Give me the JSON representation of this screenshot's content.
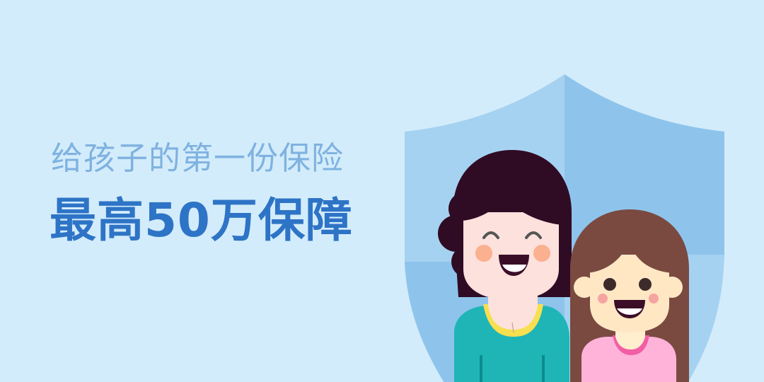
{
  "banner": {
    "subtitle": "给孩子的第一份保险",
    "title": "最高50万保障"
  },
  "colors": {
    "background": "#d3ecfb",
    "subtitle": "#7fb2e0",
    "title": "#2e74c6",
    "shield_light": "#a6d2f1",
    "shield_dark": "#8ec4ec",
    "mother_hair": "#300b24",
    "mother_shirt": "#1fb5b7",
    "girl_hair": "#7a4a40",
    "girl_shirt": "#ffb3d9"
  },
  "icons": [
    "shield-icon",
    "mother-figure",
    "girl-figure"
  ]
}
